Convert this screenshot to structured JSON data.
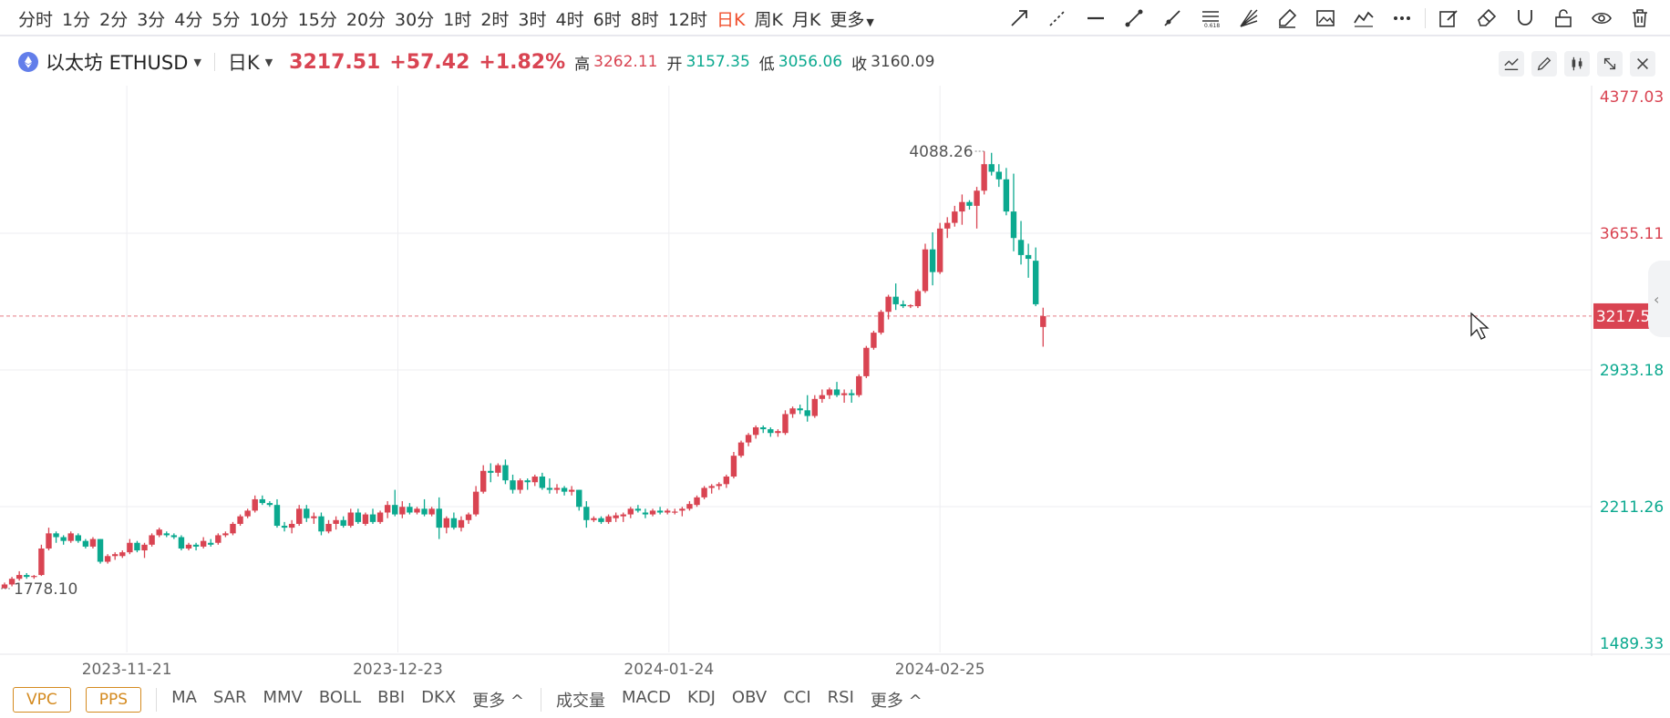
{
  "toolbar": {
    "intervals": [
      "分时",
      "1分",
      "2分",
      "3分",
      "4分",
      "5分",
      "10分",
      "15分",
      "20分",
      "30分",
      "1时",
      "2时",
      "3时",
      "4时",
      "6时",
      "8时",
      "12时",
      "日K",
      "周K",
      "月K",
      "更多"
    ],
    "active_interval": "日K"
  },
  "symbol": {
    "name": "以太坊 ETHUSD",
    "period": "日K",
    "last": "3217.51",
    "change": "+57.42",
    "change_pct": "+1.82%",
    "high_label": "高",
    "high": "3262.11",
    "open_label": "开",
    "open": "3157.35",
    "low_label": "低",
    "low": "3056.06",
    "close_label": "收",
    "close": "3160.09"
  },
  "colors": {
    "up": "#d94452",
    "down": "#0ba98f",
    "active": "#f0502e",
    "coin": "#627eea"
  },
  "chart_data": {
    "type": "candlestick",
    "instrument": "ETHUSD",
    "y_ticks": [
      "4377.03",
      "3655.11",
      "2933.18",
      "2211.26",
      "1489.33"
    ],
    "ylim": [
      1489.33,
      4377.03
    ],
    "x_ticks": [
      "2023-11-21",
      "2023-12-23",
      "2024-01-24",
      "2024-02-25"
    ],
    "current_price": "3217.51",
    "max_label": "4088.26",
    "min_label": "1778.10",
    "grid": true,
    "candles": [
      [
        1780,
        1810,
        1778.1,
        1800
      ],
      [
        1800,
        1840,
        1790,
        1830
      ],
      [
        1830,
        1870,
        1820,
        1850
      ],
      [
        1850,
        1860,
        1830,
        1840
      ],
      [
        1840,
        1850,
        1830,
        1845
      ],
      [
        1850,
        2010,
        1845,
        1990
      ],
      [
        1990,
        2100,
        1980,
        2070
      ],
      [
        2070,
        2080,
        2020,
        2050
      ],
      [
        2050,
        2060,
        2010,
        2030
      ],
      [
        2030,
        2080,
        2020,
        2070
      ],
      [
        2060,
        2070,
        2020,
        2030
      ],
      [
        2030,
        2040,
        1990,
        2000
      ],
      [
        2000,
        2050,
        1990,
        2040
      ],
      [
        2040,
        2040,
        1910,
        1920
      ],
      [
        1920,
        1960,
        1910,
        1950
      ],
      [
        1950,
        1970,
        1930,
        1960
      ],
      [
        1950,
        1980,
        1940,
        1970
      ],
      [
        1970,
        2040,
        1960,
        2020
      ],
      [
        2020,
        2030,
        1970,
        1980
      ],
      [
        1980,
        2020,
        1940,
        2010
      ],
      [
        2010,
        2070,
        2000,
        2060
      ],
      [
        2060,
        2100,
        2050,
        2090
      ],
      [
        2070,
        2080,
        2050,
        2060
      ],
      [
        2060,
        2070,
        2040,
        2050
      ],
      [
        2050,
        2060,
        1980,
        1990
      ],
      [
        1990,
        2020,
        1980,
        2010
      ],
      [
        2010,
        2020,
        1980,
        2000
      ],
      [
        2000,
        2050,
        1990,
        2030
      ],
      [
        2020,
        2040,
        2000,
        2010
      ],
      [
        2020,
        2070,
        2010,
        2060
      ],
      [
        2060,
        2080,
        2050,
        2070
      ],
      [
        2070,
        2130,
        2060,
        2120
      ],
      [
        2120,
        2170,
        2110,
        2160
      ],
      [
        2160,
        2200,
        2150,
        2190
      ],
      [
        2190,
        2270,
        2180,
        2250
      ],
      [
        2250,
        2270,
        2220,
        2230
      ],
      [
        2230,
        2240,
        2210,
        2220
      ],
      [
        2220,
        2250,
        2100,
        2110
      ],
      [
        2110,
        2130,
        2080,
        2100
      ],
      [
        2100,
        2140,
        2070,
        2120
      ],
      [
        2120,
        2220,
        2110,
        2200
      ],
      [
        2200,
        2220,
        2130,
        2150
      ],
      [
        2150,
        2180,
        2120,
        2160
      ],
      [
        2160,
        2180,
        2060,
        2080
      ],
      [
        2080,
        2140,
        2070,
        2120
      ],
      [
        2120,
        2160,
        2090,
        2140
      ],
      [
        2140,
        2160,
        2100,
        2110
      ],
      [
        2110,
        2200,
        2100,
        2180
      ],
      [
        2180,
        2200,
        2120,
        2130
      ],
      [
        2120,
        2180,
        2110,
        2170
      ],
      [
        2170,
        2200,
        2120,
        2130
      ],
      [
        2130,
        2190,
        2120,
        2180
      ],
      [
        2180,
        2240,
        2150,
        2220
      ],
      [
        2220,
        2300,
        2160,
        2170
      ],
      [
        2170,
        2240,
        2150,
        2210
      ],
      [
        2210,
        2230,
        2170,
        2180
      ],
      [
        2180,
        2210,
        2170,
        2200
      ],
      [
        2200,
        2250,
        2160,
        2170
      ],
      [
        2170,
        2210,
        2160,
        2200
      ],
      [
        2200,
        2260,
        2040,
        2100
      ],
      [
        2100,
        2160,
        2070,
        2150
      ],
      [
        2150,
        2180,
        2090,
        2100
      ],
      [
        2100,
        2160,
        2080,
        2140
      ],
      [
        2140,
        2180,
        2120,
        2170
      ],
      [
        2170,
        2320,
        2160,
        2290
      ],
      [
        2290,
        2430,
        2280,
        2400
      ],
      [
        2400,
        2440,
        2340,
        2390
      ],
      [
        2390,
        2440,
        2370,
        2430
      ],
      [
        2430,
        2460,
        2330,
        2350
      ],
      [
        2350,
        2380,
        2280,
        2300
      ],
      [
        2300,
        2360,
        2280,
        2350
      ],
      [
        2350,
        2360,
        2300,
        2340
      ],
      [
        2340,
        2380,
        2320,
        2370
      ],
      [
        2370,
        2390,
        2300,
        2310
      ],
      [
        2310,
        2360,
        2280,
        2300
      ],
      [
        2300,
        2330,
        2280,
        2310
      ],
      [
        2310,
        2320,
        2270,
        2290
      ],
      [
        2290,
        2320,
        2270,
        2300
      ],
      [
        2300,
        2300,
        2190,
        2210
      ],
      [
        2210,
        2240,
        2100,
        2140
      ],
      [
        2140,
        2160,
        2130,
        2150
      ],
      [
        2150,
        2160,
        2120,
        2130
      ],
      [
        2130,
        2170,
        2120,
        2160
      ],
      [
        2150,
        2180,
        2130,
        2165
      ],
      [
        2160,
        2180,
        2130,
        2170
      ],
      [
        2170,
        2210,
        2150,
        2200
      ],
      [
        2200,
        2220,
        2180,
        2190
      ],
      [
        2180,
        2200,
        2150,
        2170
      ],
      [
        2170,
        2200,
        2160,
        2190
      ],
      [
        2190,
        2210,
        2170,
        2180
      ],
      [
        2180,
        2200,
        2170,
        2190
      ],
      [
        2180,
        2200,
        2170,
        2185
      ],
      [
        2190,
        2210,
        2160,
        2200
      ],
      [
        2200,
        2240,
        2190,
        2225
      ],
      [
        2220,
        2270,
        2210,
        2260
      ],
      [
        2260,
        2320,
        2250,
        2310
      ],
      [
        2310,
        2330,
        2280,
        2320
      ],
      [
        2320,
        2340,
        2300,
        2330
      ],
      [
        2330,
        2380,
        2310,
        2370
      ],
      [
        2370,
        2500,
        2360,
        2480
      ],
      [
        2480,
        2560,
        2470,
        2550
      ],
      [
        2550,
        2600,
        2530,
        2590
      ],
      [
        2590,
        2640,
        2570,
        2630
      ],
      [
        2630,
        2640,
        2600,
        2620
      ],
      [
        2620,
        2630,
        2580,
        2600
      ],
      [
        2600,
        2620,
        2580,
        2610
      ],
      [
        2600,
        2720,
        2590,
        2700
      ],
      [
        2700,
        2740,
        2680,
        2730
      ],
      [
        2730,
        2750,
        2700,
        2720
      ],
      [
        2720,
        2800,
        2660,
        2690
      ],
      [
        2690,
        2800,
        2680,
        2780
      ],
      [
        2780,
        2830,
        2760,
        2800
      ],
      [
        2800,
        2840,
        2780,
        2830
      ],
      [
        2830,
        2870,
        2790,
        2800
      ],
      [
        2800,
        2830,
        2760,
        2810
      ],
      [
        2810,
        2830,
        2760,
        2800
      ],
      [
        2800,
        2910,
        2790,
        2900
      ],
      [
        2900,
        3060,
        2890,
        3050
      ],
      [
        3050,
        3140,
        3040,
        3130
      ],
      [
        3130,
        3250,
        3120,
        3240
      ],
      [
        3240,
        3330,
        3200,
        3320
      ],
      [
        3320,
        3390,
        3250,
        3280
      ],
      [
        3280,
        3300,
        3260,
        3270
      ],
      [
        3270,
        3280,
        3260,
        3275
      ],
      [
        3270,
        3360,
        3260,
        3350
      ],
      [
        3350,
        3600,
        3340,
        3570
      ],
      [
        3570,
        3660,
        3380,
        3450
      ],
      [
        3450,
        3710,
        3440,
        3680
      ],
      [
        3680,
        3740,
        3630,
        3710
      ],
      [
        3710,
        3800,
        3690,
        3770
      ],
      [
        3770,
        3860,
        3700,
        3820
      ],
      [
        3820,
        3830,
        3780,
        3800
      ],
      [
        3800,
        3900,
        3680,
        3880
      ],
      [
        3880,
        4088.26,
        3860,
        4020
      ],
      [
        4020,
        4080,
        3960,
        3980
      ],
      [
        3980,
        4020,
        3900,
        3940
      ],
      [
        3940,
        4000,
        3750,
        3770
      ],
      [
        3770,
        3970,
        3560,
        3630
      ],
      [
        3620,
        3720,
        3490,
        3540
      ],
      [
        3540,
        3600,
        3420,
        3520
      ],
      [
        3510,
        3580,
        3270,
        3280
      ],
      [
        3160,
        3262,
        3056,
        3217.51
      ]
    ]
  },
  "bottom": {
    "vpc": "VPC",
    "pps": "PPS",
    "main_indicators": [
      "MA",
      "SAR",
      "MMV",
      "BOLL",
      "BBI",
      "DKX",
      "更多 ^"
    ],
    "sub_indicators": [
      "成交量",
      "MACD",
      "KDJ",
      "OBV",
      "CCI",
      "RSI",
      "更多 ^"
    ]
  }
}
